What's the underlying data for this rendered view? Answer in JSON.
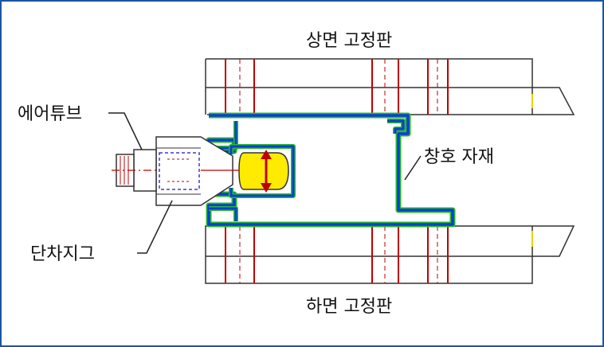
{
  "labels": {
    "top_plate": "상면 고정판",
    "bottom_plate": "하면 고정판",
    "air_tube": "에어튜브",
    "step_jig": "단차지그",
    "window_material": "창호 자재"
  },
  "colors": {
    "frame_border": "#1a55a6",
    "outline": "#333333",
    "red_line": "#c00000",
    "profile_blue": "#0a3fd6",
    "profile_green": "#29b829",
    "jig_dash": "#3b3bd6",
    "tube_fill": "#ffeb00",
    "hatch_yellow": "#e6c200"
  },
  "icons": [
    "arrow-up-down-icon"
  ]
}
